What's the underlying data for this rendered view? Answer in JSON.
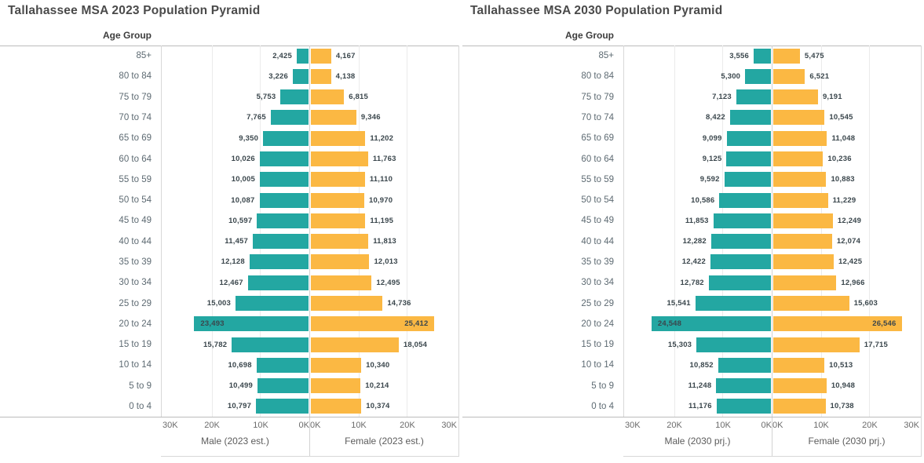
{
  "colors": {
    "male_bar": "#23A7A2",
    "female_bar": "#FBB843",
    "value_label": "#3A464C",
    "age_label": "#5D6A72",
    "axis_line": "#BCBCBC",
    "gridline": "#EBEBEB"
  },
  "chart_data": [
    {
      "type": "bar",
      "subtype": "population-pyramid",
      "title": "Tallahassee MSA 2023 Population Pyramid",
      "age_axis_label": "Age Group",
      "male_axis_title": "Male (2023 est.)",
      "female_axis_title": "Female (2023 est.)",
      "axis_ticks_male": [
        "30K",
        "20K",
        "10K",
        "0K"
      ],
      "axis_ticks_female": [
        "0K",
        "10K",
        "20K",
        "30K"
      ],
      "xlim": [
        0,
        30500
      ],
      "grid": true,
      "categories": [
        "85+",
        "80 to 84",
        "75 to 79",
        "70 to 74",
        "65 to 69",
        "60 to 64",
        "55 to 59",
        "50 to 54",
        "45 to 49",
        "40 to 44",
        "35 to 39",
        "30 to 34",
        "25 to 29",
        "20 to 24",
        "15 to 19",
        "10 to 14",
        "5 to 9",
        "0 to 4"
      ],
      "series": [
        {
          "name": "Male",
          "values": [
            2425,
            3226,
            5753,
            7765,
            9350,
            10026,
            10005,
            10087,
            10597,
            11457,
            12128,
            12467,
            15003,
            23493,
            15782,
            10698,
            10499,
            10797
          ]
        },
        {
          "name": "Female",
          "values": [
            4167,
            4138,
            6815,
            9346,
            11202,
            11763,
            11110,
            10970,
            11195,
            11813,
            12013,
            12495,
            14736,
            25412,
            18054,
            10340,
            10214,
            10374
          ]
        }
      ]
    },
    {
      "type": "bar",
      "subtype": "population-pyramid",
      "title": "Tallahassee MSA 2030 Population Pyramid",
      "age_axis_label": "Age Group",
      "male_axis_title": "Male (2030 prj.)",
      "female_axis_title": "Female (2030 prj.)",
      "axis_ticks_male": [
        "30K",
        "20K",
        "10K",
        "0K"
      ],
      "axis_ticks_female": [
        "0K",
        "10K",
        "20K",
        "30K"
      ],
      "xlim": [
        0,
        30500
      ],
      "grid": true,
      "categories": [
        "85+",
        "80 to 84",
        "75 to 79",
        "70 to 74",
        "65 to 69",
        "60 to 64",
        "55 to 59",
        "50 to 54",
        "45 to 49",
        "40 to 44",
        "35 to 39",
        "30 to 34",
        "25 to 29",
        "20 to 24",
        "15 to 19",
        "10 to 14",
        "5 to 9",
        "0 to 4"
      ],
      "series": [
        {
          "name": "Male",
          "values": [
            3556,
            5300,
            7123,
            8422,
            9099,
            9125,
            9592,
            10586,
            11853,
            12282,
            12422,
            12782,
            15541,
            24548,
            15303,
            10852,
            11248,
            11176
          ]
        },
        {
          "name": "Female",
          "values": [
            5475,
            6521,
            9191,
            10545,
            11048,
            10236,
            10883,
            11229,
            12249,
            12074,
            12425,
            12966,
            15603,
            26546,
            17715,
            10513,
            10948,
            10738
          ]
        }
      ]
    }
  ]
}
